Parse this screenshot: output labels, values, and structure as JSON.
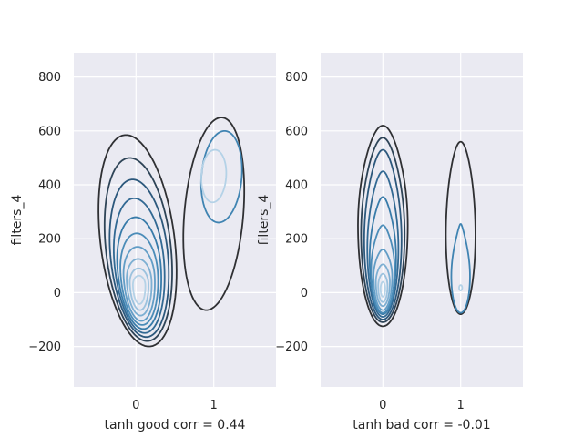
{
  "chart_data": [
    {
      "type": "contour",
      "xlabel": "tanh good corr = 0.44",
      "ylabel": "filters_4",
      "xlim": [
        -0.8,
        1.8
      ],
      "ylim": [
        -350,
        890
      ],
      "xticks": [
        0,
        1
      ],
      "yticks": [
        -200,
        0,
        200,
        400,
        600,
        800
      ],
      "grid": true,
      "colormap": [
        "#2f3033",
        "#2c5a80",
        "#3a7fae",
        "#6aa3cb",
        "#a9cbe3",
        "#d6e6f2"
      ],
      "groups": [
        {
          "x": 0,
          "levels": [
            {
              "center": [
                0.02,
                190
              ],
              "rx": 0.48,
              "ry_top": 395,
              "ry_bottom": 390,
              "skew": -0.25
            },
            {
              "center": [
                0.03,
                165
              ],
              "rx": 0.42,
              "ry_top": 335,
              "ry_bottom": 345,
              "skew": -0.22
            },
            {
              "center": [
                0.04,
                140
              ],
              "rx": 0.37,
              "ry_top": 280,
              "ry_bottom": 305,
              "skew": -0.2
            },
            {
              "center": [
                0.04,
                115
              ],
              "rx": 0.32,
              "ry_top": 235,
              "ry_bottom": 265,
              "skew": -0.18
            },
            {
              "center": [
                0.04,
                95
              ],
              "rx": 0.28,
              "ry_top": 185,
              "ry_bottom": 230,
              "skew": -0.16
            },
            {
              "center": [
                0.04,
                75
              ],
              "rx": 0.24,
              "ry_top": 145,
              "ry_bottom": 195,
              "skew": -0.14
            },
            {
              "center": [
                0.04,
                60
              ],
              "rx": 0.2,
              "ry_top": 110,
              "ry_bottom": 165,
              "skew": -0.12
            },
            {
              "center": [
                0.04,
                45
              ],
              "rx": 0.16,
              "ry_top": 80,
              "ry_bottom": 130,
              "skew": -0.1
            },
            {
              "center": [
                0.04,
                35
              ],
              "rx": 0.12,
              "ry_top": 55,
              "ry_bottom": 100,
              "skew": -0.08
            },
            {
              "center": [
                0.04,
                28
              ],
              "rx": 0.08,
              "ry_top": 35,
              "ry_bottom": 70,
              "skew": -0.05
            }
          ]
        },
        {
          "x": 1,
          "levels": [
            {
              "center": [
                1.0,
                290
              ],
              "rx": 0.38,
              "ry_top": 360,
              "ry_bottom": 355,
              "skew": 0.18
            },
            {
              "center": [
                1.1,
                430
              ],
              "rx": 0.26,
              "ry_top": 170,
              "ry_bottom": 170,
              "skew": 0.15
            },
            {
              "center": [
                1.0,
                435
              ],
              "rx": 0.16,
              "ry_top": 95,
              "ry_bottom": 100,
              "skew": 0.1
            }
          ]
        }
      ]
    },
    {
      "type": "contour",
      "xlabel": "tanh bad corr = -0.01",
      "ylabel": "filters_4",
      "xlim": [
        -0.8,
        1.8
      ],
      "ylim": [
        -350,
        890
      ],
      "xticks": [
        0,
        1
      ],
      "yticks": [
        -200,
        0,
        200,
        400,
        600,
        800
      ],
      "grid": true,
      "colormap": [
        "#2f3033",
        "#2c5a80",
        "#3a7fae",
        "#6aa3cb",
        "#a9cbe3",
        "#d6e6f2"
      ],
      "groups": [
        {
          "x": 0,
          "levels": [
            {
              "center": [
                0.0,
                250
              ],
              "rx": 0.32,
              "ry_top": 370,
              "ry_bottom": 375,
              "pinch": 0.18
            },
            {
              "center": [
                0.0,
                220
              ],
              "rx": 0.28,
              "ry_top": 355,
              "ry_bottom": 330,
              "pinch": 0.2
            },
            {
              "center": [
                0.0,
                195
              ],
              "rx": 0.24,
              "ry_top": 335,
              "ry_bottom": 295,
              "pinch": 0.22
            },
            {
              "center": [
                0.0,
                165
              ],
              "rx": 0.2,
              "ry_top": 285,
              "ry_bottom": 255,
              "pinch": 0.25
            },
            {
              "center": [
                0.0,
                130
              ],
              "rx": 0.17,
              "ry_top": 225,
              "ry_bottom": 210,
              "pinch": 0.3
            },
            {
              "center": [
                0.0,
                90
              ],
              "rx": 0.15,
              "ry_top": 160,
              "ry_bottom": 165,
              "pinch": 0.3
            },
            {
              "center": [
                0.0,
                60
              ],
              "rx": 0.12,
              "ry_top": 100,
              "ry_bottom": 125,
              "pinch": 0.25
            },
            {
              "center": [
                0.0,
                40
              ],
              "rx": 0.09,
              "ry_top": 65,
              "ry_bottom": 90,
              "pinch": 0.2
            },
            {
              "center": [
                0.0,
                25
              ],
              "rx": 0.06,
              "ry_top": 45,
              "ry_bottom": 60,
              "pinch": 0.15
            },
            {
              "center": [
                0.0,
                15
              ],
              "rx": 0.03,
              "ry_top": 25,
              "ry_bottom": 30,
              "pinch": 0.1
            }
          ]
        },
        {
          "x": 1,
          "levels": [
            {
              "center": [
                1.0,
                215
              ],
              "rx": 0.19,
              "ry_top": 345,
              "ry_bottom": 295,
              "pinch": 0.15
            },
            {
              "center": [
                1.0,
                60
              ],
              "rx": 0.12,
              "ry_top": 195,
              "ry_bottom": 135,
              "pinch": 0.55
            },
            {
              "center": [
                1.0,
                18
              ],
              "rx": 0.02,
              "ry_top": 10,
              "ry_bottom": 10,
              "pinch": 0.0
            }
          ]
        }
      ]
    }
  ]
}
